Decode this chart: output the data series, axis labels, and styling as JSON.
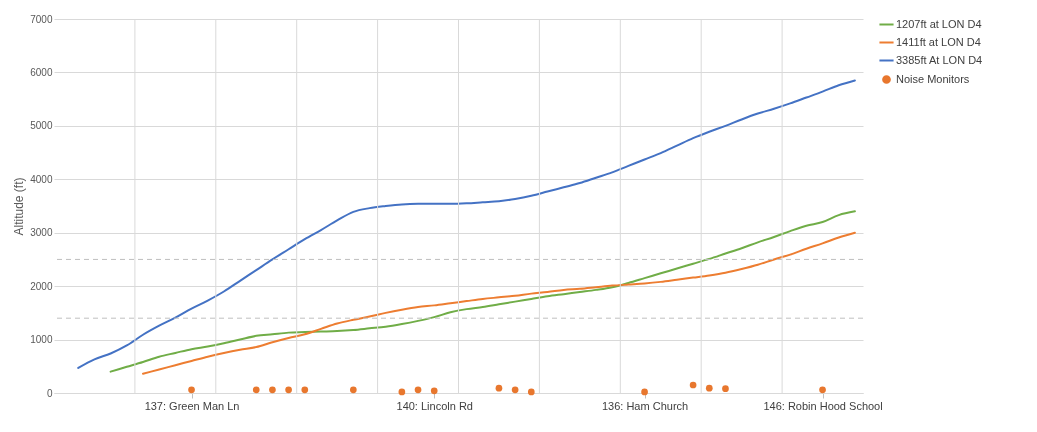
{
  "chart_data": {
    "type": "line",
    "ylabel": "Altitude (ft)",
    "categories": [
      null,
      null,
      null,
      null,
      null,
      null,
      null,
      null,
      "137: Green Man Ln",
      null,
      null,
      null,
      null,
      null,
      null,
      null,
      null,
      null,
      null,
      null,
      null,
      null,
      null,
      "140: Lincoln Rd",
      null,
      null,
      null,
      null,
      null,
      null,
      null,
      null,
      null,
      null,
      null,
      null,
      "136: Ham Church",
      null,
      null,
      null,
      null,
      null,
      null,
      null,
      null,
      null,
      null,
      "146: Robin Hood School",
      null,
      null
    ],
    "series": [
      {
        "name": "1207ft at LON D4",
        "color": "#70ad47",
        "values": [
          null,
          null,
          null,
          400,
          490,
          580,
          680,
          750,
          820,
          870,
          930,
          1000,
          1070,
          1100,
          1130,
          1140,
          1150,
          1160,
          1180,
          1210,
          1240,
          1290,
          1350,
          1420,
          1510,
          1570,
          1610,
          1660,
          1710,
          1760,
          1810,
          1850,
          1890,
          1930,
          1980,
          2060,
          2150,
          2240,
          2330,
          2420,
          2510,
          2610,
          2710,
          2820,
          2920,
          3030,
          3130,
          3200,
          3330,
          3400
        ]
      },
      {
        "name": "1411ft at LON D4",
        "color": "#ed7d31",
        "values": [
          null,
          null,
          null,
          null,
          null,
          360,
          440,
          520,
          600,
          680,
          750,
          810,
          860,
          950,
          1030,
          1100,
          1200,
          1300,
          1370,
          1430,
          1500,
          1560,
          1610,
          1640,
          1680,
          1720,
          1760,
          1790,
          1820,
          1860,
          1890,
          1930,
          1950,
          1980,
          2010,
          2030,
          2050,
          2080,
          2120,
          2160,
          2200,
          2250,
          2320,
          2400,
          2500,
          2590,
          2700,
          2800,
          2910,
          3000
        ]
      },
      {
        "name": "3385ft At LON D4",
        "color": "#4472c4",
        "values": [
          null,
          470,
          630,
          740,
          890,
          1090,
          1260,
          1410,
          1580,
          1730,
          1900,
          2100,
          2300,
          2500,
          2690,
          2880,
          3050,
          3230,
          3390,
          3460,
          3500,
          3530,
          3540,
          3540,
          3540,
          3550,
          3570,
          3590,
          3630,
          3690,
          3770,
          3850,
          3930,
          4030,
          4130,
          4250,
          4370,
          4490,
          4630,
          4770,
          4890,
          5000,
          5120,
          5230,
          5320,
          5420,
          5530,
          5640,
          5760,
          5850
        ]
      },
      {
        "name": "Noise Monitors",
        "type": "scatter",
        "marker": "circle",
        "color": "#e8772e",
        "values": [
          null,
          null,
          null,
          null,
          null,
          null,
          null,
          null,
          60,
          null,
          null,
          null,
          60,
          60,
          60,
          60,
          null,
          null,
          60,
          null,
          null,
          20,
          60,
          40,
          null,
          null,
          null,
          90,
          60,
          20,
          null,
          null,
          null,
          null,
          null,
          null,
          20,
          null,
          null,
          150,
          90,
          80,
          null,
          null,
          null,
          null,
          null,
          60,
          null,
          null
        ]
      }
    ],
    "ylim": [
      0,
      7000
    ],
    "yticks": [
      0,
      1000,
      2000,
      3000,
      4000,
      5000,
      6000,
      7000
    ],
    "grid": true,
    "legend": "right",
    "marker": "none",
    "ref_lines": [
      {
        "axis": "y",
        "value": 2500,
        "line_style": "dashed",
        "color": "#bfbfbf"
      },
      {
        "axis": "y",
        "value": 1400,
        "line_style": "dashed",
        "color": "#bfbfbf"
      }
    ]
  }
}
